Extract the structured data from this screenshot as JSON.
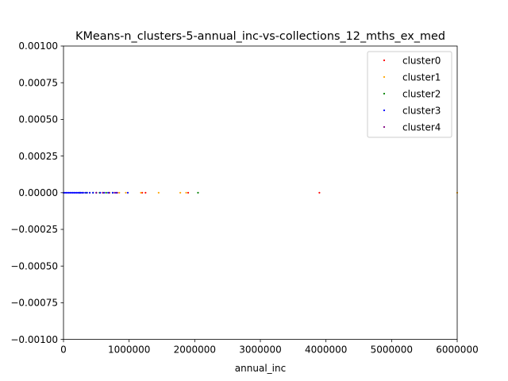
{
  "chart_data": {
    "type": "scatter",
    "title": "KMeans-n_clusters-5-annual_inc-vs-collections_12_mths_ex_med",
    "xlabel": "annual_inc",
    "ylabel": "",
    "xlim": [
      0,
      6000000
    ],
    "ylim": [
      -0.001,
      0.001
    ],
    "x_ticks": [
      0,
      1000000,
      2000000,
      3000000,
      4000000,
      5000000,
      6000000
    ],
    "x_tick_labels": [
      "0",
      "1000000",
      "2000000",
      "3000000",
      "4000000",
      "5000000",
      "6000000"
    ],
    "y_ticks": [
      0.001,
      0.00075,
      0.0005,
      0.00025,
      0,
      -0.00025,
      -0.0005,
      -0.00075,
      -0.001
    ],
    "y_tick_labels": [
      "0.00100",
      "0.00075",
      "0.00050",
      "0.00025",
      "0.00000",
      "−0.00025",
      "−0.00050",
      "−0.00075",
      "−0.00100"
    ],
    "grid": false,
    "legend_position": "top-right",
    "series": [
      {
        "name": "cluster0",
        "color": "#ff0000",
        "x": [
          1200000,
          1250000,
          1900000,
          3900000
        ],
        "y": [
          0,
          0,
          0,
          0
        ]
      },
      {
        "name": "cluster1",
        "color": "#ffa500",
        "x": [
          300000,
          400000,
          500000,
          600000,
          700000,
          850000,
          950000,
          1180000,
          1450000,
          1780000,
          1870000,
          6000000
        ],
        "y": [
          0,
          0,
          0,
          0,
          0,
          0,
          0,
          0,
          0,
          0,
          0,
          0
        ]
      },
      {
        "name": "cluster2",
        "color": "#008000",
        "x": [
          250000,
          350000,
          450000,
          550000,
          650000,
          750000,
          2050000
        ],
        "y": [
          0,
          0,
          0,
          0,
          0,
          0,
          0
        ]
      },
      {
        "name": "cluster3",
        "color": "#0000ff",
        "x": [
          0,
          20000,
          40000,
          60000,
          80000,
          100000,
          120000,
          140000,
          160000,
          180000,
          200000,
          220000,
          240000,
          260000,
          280000,
          300000,
          330000,
          360000,
          400000,
          450000,
          500000,
          560000,
          620000,
          680000,
          750000,
          800000,
          980000
        ],
        "y": [
          0,
          0,
          0,
          0,
          0,
          0,
          0,
          0,
          0,
          0,
          0,
          0,
          0,
          0,
          0,
          0,
          0,
          0,
          0,
          0,
          0,
          0,
          0,
          0,
          0,
          0,
          0
        ]
      },
      {
        "name": "cluster4",
        "color": "#800080",
        "x": [
          500000,
          600000,
          700000,
          780000,
          820000
        ],
        "y": [
          0,
          0,
          0,
          0,
          0
        ]
      }
    ]
  }
}
